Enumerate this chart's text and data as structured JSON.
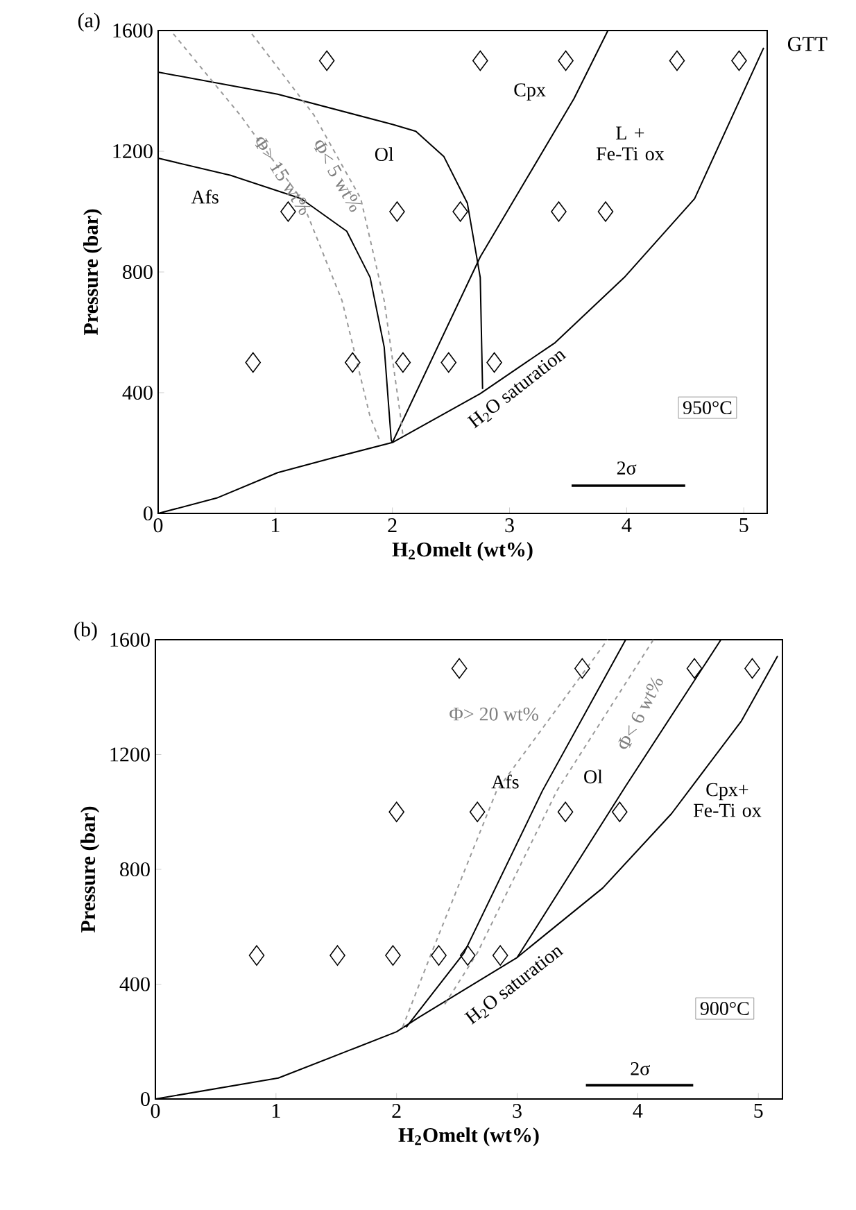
{
  "chart_data": [
    {
      "type": "line",
      "title": "(a)",
      "xlabel": "H$_{2}$Omelt  (wt%)",
      "ylabel": "Pressure (bar)",
      "xlim": [
        0,
        5.2
      ],
      "ylim": [
        0,
        1600
      ],
      "xticks": [
        0,
        1,
        2,
        3,
        4,
        5
      ],
      "yticks": [
        0,
        400,
        800,
        1200,
        1600
      ],
      "series": [
        {
          "type": "scatter",
          "marker": "diamond",
          "color": "#000000",
          "x": [
            1.44,
            2.75,
            3.48,
            4.43,
            4.96,
            1.11,
            2.04,
            2.58,
            3.42,
            3.82,
            0.81,
            1.66,
            2.09,
            2.48,
            2.87
          ],
          "values": [
            1500,
            1500,
            1500,
            1500,
            1500,
            1000,
            1000,
            1000,
            1000,
            1000,
            500,
            500,
            500,
            500,
            500
          ]
        },
        {
          "type": "line",
          "line_style": "solid",
          "color": "#000000",
          "x": [
            0,
            0.5,
            1.02,
            1.5,
            2.0,
            2.75,
            3.39,
            3.98,
            4.58,
            5.17
          ],
          "values": [
            0,
            51,
            135,
            185,
            235,
            397,
            566,
            782,
            1043,
            1543
          ]
        },
        {
          "type": "line",
          "line_style": "solid",
          "color": "#000000",
          "x": [
            2.0,
            2.75,
            3.55,
            3.84
          ],
          "values": [
            235,
            850,
            1374,
            1600
          ]
        },
        {
          "type": "line",
          "line_style": "solid",
          "color": "#000000",
          "x": [
            0,
            0.62,
            1.22,
            1.61,
            1.81,
            1.93,
            1.99,
            2.0
          ],
          "values": [
            1177,
            1120,
            1043,
            935,
            782,
            551,
            243,
            235
          ]
        },
        {
          "type": "line",
          "line_style": "solid",
          "color": "#000000",
          "x": [
            0,
            1.02,
            2.0,
            2.2,
            2.44,
            2.64,
            2.75,
            2.77
          ],
          "values": [
            1462,
            1389,
            1289,
            1266,
            1182,
            1028,
            782,
            412
          ]
        },
        {
          "type": "line",
          "line_style": "dashed",
          "color": "#999999",
          "x": [
            0.13,
            0.7,
            1.22,
            1.57,
            1.81,
            1.89
          ],
          "values": [
            1589,
            1320,
            1043,
            705,
            320,
            243
          ]
        },
        {
          "type": "line",
          "line_style": "dashed",
          "color": "#999999",
          "x": [
            0.8,
            1.33,
            1.73,
            1.93,
            2.07,
            2.09
          ],
          "values": [
            1589,
            1320,
            1043,
            705,
            320,
            258
          ]
        },
        {
          "type": "line",
          "line_style": "solid",
          "color": "#000000",
          "x": [
            3.53,
            4.5
          ],
          "values": [
            92,
            92
          ]
        }
      ],
      "annotations": [
        "Afs",
        "Ol",
        "Cpx",
        "L + Fe-Ti ox",
        "Φ> 15 wt%",
        "Φ< 5 wt%",
        "H$_{2}$O saturation",
        "950°C",
        "2σ",
        "GTT"
      ]
    },
    {
      "type": "line",
      "title": "(b)",
      "xlabel": "H$_{2}$Omelt  (wt%)",
      "ylabel": "Pressure (bar)",
      "xlim": [
        0,
        5.2
      ],
      "ylim": [
        0,
        1600
      ],
      "xticks": [
        0,
        1,
        2,
        3,
        4,
        5
      ],
      "yticks": [
        0,
        400,
        800,
        1200,
        1600
      ],
      "series": [
        {
          "type": "scatter",
          "marker": "diamond",
          "color": "#000000",
          "x": [
            2.52,
            3.54,
            4.47,
            4.95,
            2.0,
            2.67,
            3.4,
            3.85,
            0.84,
            1.51,
            1.97,
            2.35,
            2.59,
            2.86
          ],
          "values": [
            1500,
            1500,
            1500,
            1500,
            1000,
            1000,
            1000,
            1000,
            500,
            500,
            500,
            500,
            500,
            500
          ]
        },
        {
          "type": "line",
          "line_style": "solid",
          "color": "#000000",
          "x": [
            0,
            1.02,
            2.0,
            2.18,
            3.0,
            3.71,
            4.28,
            4.86,
            5.16
          ],
          "values": [
            0,
            73,
            234,
            283,
            493,
            735,
            994,
            1317,
            1543
          ]
        },
        {
          "type": "line",
          "line_style": "solid",
          "color": "#000000",
          "x": [
            2.08,
            2.56,
            3.21,
            3.9
          ],
          "values": [
            250,
            509,
            1074,
            1600
          ]
        },
        {
          "type": "line",
          "line_style": "solid",
          "color": "#000000",
          "x": [
            3.0,
            3.9,
            4.69
          ],
          "values": [
            493,
            1090,
            1600
          ]
        },
        {
          "type": "line",
          "line_style": "dashed",
          "color": "#999999",
          "x": [
            2.05,
            2.29,
            2.83,
            3.75
          ],
          "values": [
            250,
            509,
            1074,
            1600
          ]
        },
        {
          "type": "line",
          "line_style": "dashed",
          "color": "#999999",
          "x": [
            2.4,
            2.67,
            3.33,
            4.13
          ],
          "values": [
            330,
            509,
            1074,
            1600
          ]
        },
        {
          "type": "line",
          "line_style": "solid",
          "color": "#000000",
          "x": [
            3.57,
            4.46
          ],
          "values": [
            48,
            48
          ]
        }
      ],
      "annotations": [
        "Φ> 20 wt%",
        "Φ< 6 wt%",
        "Afs",
        "Ol",
        "Cpx+ Fe-Ti ox",
        "H$_{2}$O saturation",
        "900°C",
        "2σ"
      ]
    }
  ]
}
